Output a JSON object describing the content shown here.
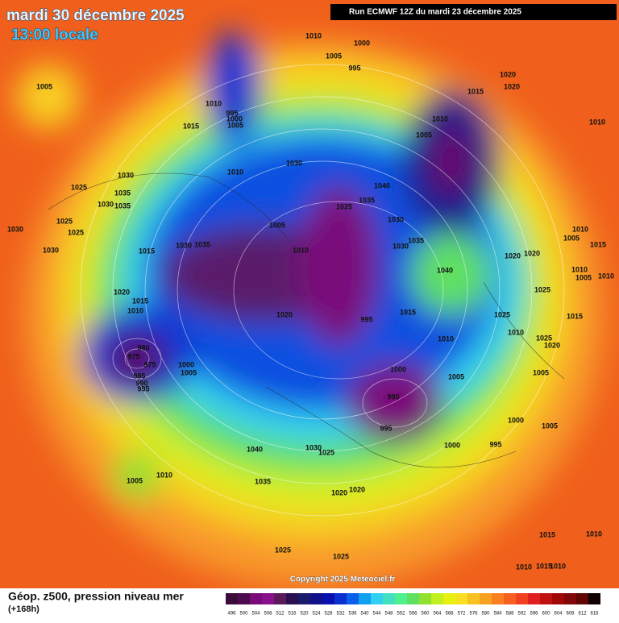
{
  "header": {
    "date": "mardi 30 décembre 2025",
    "time": "13:00 locale",
    "run": "Run ECMWF 12Z du mardi 23 décembre 2025"
  },
  "map": {
    "pressure_labels": [
      1010,
      1000,
      1005,
      995,
      1020,
      1005,
      1020,
      1015,
      1010,
      995,
      1000,
      1005,
      1010,
      1015,
      1010,
      1005,
      1030,
      1010,
      1030,
      1025,
      1040,
      1035,
      1035,
      1030,
      1035,
      1025,
      1005,
      1030,
      1025,
      1030,
      1025,
      1035,
      1030,
      1035,
      1030,
      1010,
      1005,
      1015,
      1015,
      1010,
      1030,
      1020,
      1020,
      1040,
      1010,
      1005,
      1010,
      1020,
      1015,
      1025,
      1010,
      1020,
      1015,
      1025,
      995,
      1015,
      1010,
      1010,
      1025,
      1020,
      980,
      975,
      975,
      1000,
      1005,
      1000,
      1005,
      1005,
      985,
      990,
      995,
      990,
      1000,
      1005,
      995,
      1000,
      995,
      1040,
      1030,
      1025,
      1005,
      1010,
      1035,
      1020,
      1020,
      1015,
      1010,
      1025,
      1025,
      1010,
      1015,
      1010
    ]
  },
  "footer": {
    "title": "Géop. z500, pression niveau mer",
    "lead": "(+168h)",
    "copyright": "Copyright 2025 Meteociel.fr"
  },
  "legend": {
    "values": [
      496,
      500,
      504,
      508,
      512,
      516,
      520,
      524,
      528,
      532,
      536,
      540,
      544,
      548,
      552,
      556,
      560,
      564,
      568,
      572,
      576,
      580,
      584,
      588,
      592,
      596,
      600,
      604,
      608,
      612,
      616
    ],
    "colors": [
      "#3b0a3a",
      "#4e0a4e",
      "#7a0a7a",
      "#8b108b",
      "#5a1a5a",
      "#2a1050",
      "#1a1a6a",
      "#10108a",
      "#0a10b0",
      "#0a30d0",
      "#0a60e8",
      "#10a0f0",
      "#30d0f0",
      "#40e0c0",
      "#50f090",
      "#60e060",
      "#90e030",
      "#c0f020",
      "#e8f010",
      "#f8e020",
      "#f8c020",
      "#f8a020",
      "#f88020",
      "#f86020",
      "#f04020",
      "#e02020",
      "#c01010",
      "#a00808",
      "#800808",
      "#600404",
      "#100000"
    ]
  }
}
